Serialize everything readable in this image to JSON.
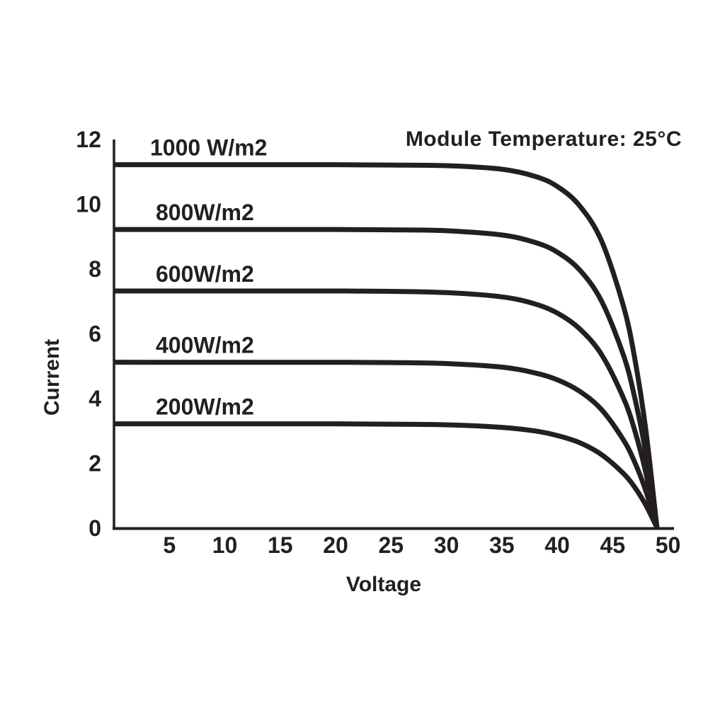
{
  "colors": {
    "ink": "#231f20",
    "background": "#ffffff"
  },
  "chart_data": {
    "type": "line",
    "annotation": "Module Temperature: 25°C",
    "xlabel": "Voltage",
    "ylabel": "Current",
    "xlim": [
      0,
      50
    ],
    "ylim": [
      0,
      12
    ],
    "x_ticks": [
      5,
      10,
      15,
      20,
      25,
      30,
      35,
      40,
      45,
      50
    ],
    "y_ticks": [
      0,
      2,
      4,
      6,
      8,
      10,
      12
    ],
    "grid": false,
    "legend_position": "inline-labels-left",
    "line_color": "#231f20",
    "x": [
      0,
      5,
      10,
      15,
      20,
      25,
      30,
      35,
      38,
      40,
      42,
      44,
      46,
      47,
      48,
      49
    ],
    "series": [
      {
        "name": "1000 W/m2",
        "short_circuit_current": 11.2,
        "open_circuit_voltage": 49,
        "values": [
          11.2,
          11.2,
          11.2,
          11.2,
          11.2,
          11.19,
          11.17,
          11.06,
          10.84,
          10.53,
          9.94,
          8.85,
          6.81,
          5.21,
          3.01,
          0
        ]
      },
      {
        "name": "800W/m2",
        "short_circuit_current": 9.2,
        "open_circuit_voltage": 49,
        "values": [
          9.2,
          9.2,
          9.2,
          9.2,
          9.2,
          9.19,
          9.16,
          9.03,
          8.8,
          8.5,
          7.96,
          6.99,
          5.3,
          4.0,
          2.29,
          0
        ]
      },
      {
        "name": "600W/m2",
        "short_circuit_current": 7.3,
        "open_circuit_voltage": 49,
        "values": [
          7.3,
          7.3,
          7.3,
          7.3,
          7.3,
          7.29,
          7.25,
          7.12,
          6.9,
          6.62,
          6.14,
          5.34,
          3.98,
          2.99,
          1.69,
          0
        ]
      },
      {
        "name": "400W/m2",
        "short_circuit_current": 5.1,
        "open_circuit_voltage": 49,
        "values": [
          5.1,
          5.1,
          5.1,
          5.1,
          5.1,
          5.09,
          5.06,
          4.95,
          4.77,
          4.56,
          4.21,
          3.64,
          2.69,
          2.01,
          1.13,
          0
        ]
      },
      {
        "name": "200W/m2",
        "short_circuit_current": 3.2,
        "open_circuit_voltage": 49,
        "values": [
          3.2,
          3.2,
          3.2,
          3.2,
          3.2,
          3.19,
          3.17,
          3.09,
          2.98,
          2.84,
          2.62,
          2.25,
          1.66,
          1.24,
          0.69,
          0
        ]
      }
    ]
  }
}
